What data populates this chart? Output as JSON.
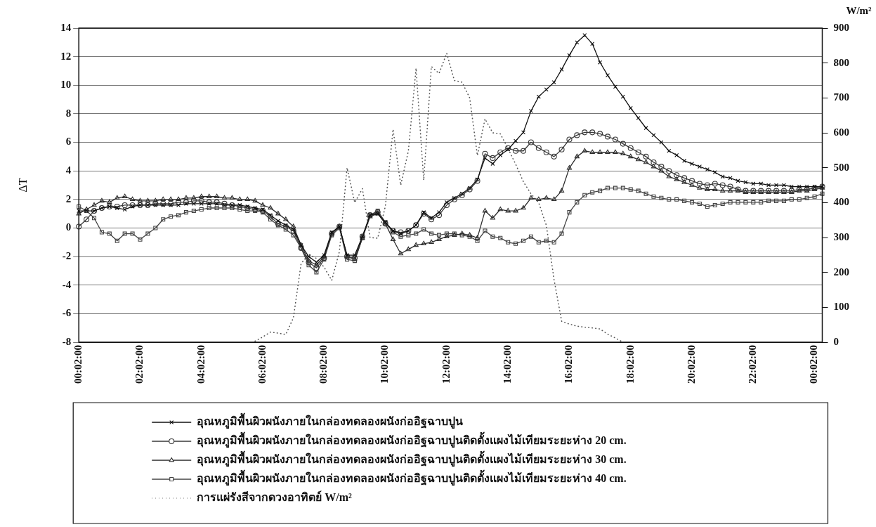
{
  "chart_data": {
    "type": "line",
    "ylabel": "ΔT",
    "y2label": "W/m²",
    "legend": "bottom",
    "grid": "y",
    "categories": [
      "00:02:00",
      null,
      null,
      null,
      null,
      null,
      null,
      null,
      "02:02:00",
      null,
      null,
      null,
      null,
      null,
      null,
      null,
      "04:02:00",
      null,
      null,
      null,
      null,
      null,
      null,
      null,
      "06:02:00",
      null,
      null,
      null,
      null,
      null,
      null,
      null,
      "08:02:00",
      null,
      null,
      null,
      null,
      null,
      null,
      null,
      "10:02:00",
      null,
      null,
      null,
      null,
      null,
      null,
      null,
      "12:02:00",
      null,
      null,
      null,
      null,
      null,
      null,
      null,
      "14:02:00",
      null,
      null,
      null,
      null,
      null,
      null,
      null,
      "16:02:00",
      null,
      null,
      null,
      null,
      null,
      null,
      null,
      "18:02:00",
      null,
      null,
      null,
      null,
      null,
      null,
      null,
      "20:02:00",
      null,
      null,
      null,
      null,
      null,
      null,
      null,
      "22:02:00",
      null,
      null,
      null,
      null,
      null,
      null,
      null,
      "00:02:00",
      null
    ],
    "ylim": [
      -8,
      14
    ],
    "yticks": [
      -8,
      -6,
      -4,
      -2,
      0,
      2,
      4,
      6,
      8,
      10,
      12,
      14
    ],
    "y2lim": [
      0,
      900
    ],
    "y2ticks": [
      0,
      100,
      200,
      300,
      400,
      500,
      600,
      700,
      800,
      900
    ],
    "series": [
      {
        "name": "อุณหภูมิพื้นผิวผนังภายในกล่องทดลองผนังก่ออิฐฉาบปูน",
        "color": "#111111",
        "marker": "cross",
        "line_style": "solid",
        "values": [
          1.2,
          1.2,
          1.2,
          1.4,
          1.5,
          1.4,
          1.3,
          1.5,
          1.6,
          1.6,
          1.6,
          1.6,
          1.6,
          1.6,
          1.7,
          1.7,
          1.7,
          1.7,
          1.7,
          1.6,
          1.6,
          1.6,
          1.5,
          1.4,
          1.3,
          0.9,
          0.5,
          0.2,
          -0.1,
          -1.2,
          -2.0,
          -2.4,
          -1.9,
          -0.3,
          0.1,
          -1.9,
          -1.9,
          -0.6,
          0.9,
          1.0,
          0.4,
          -0.2,
          -0.4,
          -0.2,
          0.2,
          1.1,
          0.7,
          1.1,
          1.8,
          2.1,
          2.4,
          2.8,
          3.4,
          4.9,
          4.5,
          5.1,
          5.5,
          6.1,
          6.7,
          8.2,
          9.2,
          9.7,
          10.2,
          11.1,
          12.1,
          13.0,
          13.5,
          12.9,
          11.6,
          10.7,
          9.9,
          9.2,
          8.4,
          7.7,
          7.0,
          6.5,
          6.0,
          5.4,
          5.1,
          4.7,
          4.5,
          4.3,
          4.1,
          3.9,
          3.6,
          3.5,
          3.3,
          3.2,
          3.1,
          3.1,
          3.0,
          3.0,
          3.0,
          2.9,
          2.9,
          2.9,
          2.9,
          2.9
        ]
      },
      {
        "name": "อุณหภูมิพื้นผิวผนังภายในกล่องทดลองผนังก่ออิฐฉาบปูนติดตั้งแผงไม้เทียมระยะห่าง 20 cm.",
        "color": "#383838",
        "marker": "circle",
        "line_style": "solid",
        "values": [
          0.1,
          0.6,
          1.2,
          1.4,
          1.5,
          1.5,
          1.6,
          1.6,
          1.6,
          1.6,
          1.7,
          1.7,
          1.7,
          1.8,
          1.8,
          1.9,
          1.9,
          1.8,
          1.8,
          1.7,
          1.6,
          1.5,
          1.4,
          1.3,
          1.2,
          0.8,
          0.3,
          0.1,
          -0.2,
          -1.4,
          -2.4,
          -2.8,
          -2.1,
          -0.4,
          0.1,
          -2.0,
          -2.1,
          -0.6,
          0.9,
          1.1,
          0.3,
          -0.2,
          -0.3,
          -0.2,
          0.2,
          1.0,
          0.6,
          0.9,
          1.6,
          2.0,
          2.3,
          2.7,
          3.3,
          5.2,
          4.9,
          5.3,
          5.6,
          5.4,
          5.4,
          6.0,
          5.6,
          5.3,
          5.0,
          5.5,
          6.2,
          6.5,
          6.7,
          6.7,
          6.6,
          6.4,
          6.2,
          5.9,
          5.6,
          5.3,
          5.0,
          4.6,
          4.3,
          4.0,
          3.7,
          3.5,
          3.3,
          3.1,
          3.0,
          3.1,
          3.0,
          2.9,
          2.7,
          2.6,
          2.6,
          2.6,
          2.6,
          2.6,
          2.6,
          2.6,
          2.7,
          2.7,
          2.8,
          2.9
        ]
      },
      {
        "name": "อุณหภูมิพื้นผิวผนังภายในกล่องทดลองผนังก่ออิฐฉาบปูนติดตั้งแผงไม้เทียมระยะห่าง 30 cm.",
        "color": "#2c2c2c",
        "marker": "triangle",
        "line_style": "solid",
        "values": [
          1.0,
          1.3,
          1.6,
          1.9,
          1.8,
          2.1,
          2.2,
          2.0,
          1.9,
          1.9,
          1.9,
          2.0,
          2.0,
          2.0,
          2.1,
          2.1,
          2.2,
          2.2,
          2.2,
          2.1,
          2.1,
          2.0,
          2.0,
          1.9,
          1.6,
          1.4,
          1.0,
          0.6,
          0.1,
          -1.2,
          -2.3,
          -2.6,
          -2.0,
          -0.4,
          0.1,
          -2.0,
          -2.2,
          -0.7,
          0.8,
          1.0,
          0.3,
          -0.8,
          -1.8,
          -1.5,
          -1.2,
          -1.1,
          -1.0,
          -0.8,
          -0.6,
          -0.5,
          -0.4,
          -0.5,
          -0.7,
          1.2,
          0.7,
          1.3,
          1.2,
          1.2,
          1.4,
          2.1,
          2.0,
          2.1,
          2.0,
          2.6,
          4.2,
          5.0,
          5.4,
          5.3,
          5.3,
          5.3,
          5.3,
          5.2,
          5.0,
          4.8,
          4.6,
          4.3,
          4.0,
          3.6,
          3.4,
          3.2,
          3.0,
          2.8,
          2.7,
          2.7,
          2.6,
          2.6,
          2.6,
          2.5,
          2.5,
          2.5,
          2.5,
          2.5,
          2.5,
          2.5,
          2.6,
          2.6,
          2.7,
          2.8
        ]
      },
      {
        "name": "อุณหภูมิพื้นผิวผนังภายในกล่องทดลองผนังก่ออิฐฉาบปูนติดตั้งแผงไม้เทียมระยะห่าง 40 cm.",
        "color": "#444444",
        "marker": "square",
        "line_style": "solid",
        "values": [
          1.5,
          1.2,
          0.7,
          -0.3,
          -0.4,
          -0.9,
          -0.4,
          -0.4,
          -0.8,
          -0.4,
          0.0,
          0.6,
          0.8,
          0.9,
          1.1,
          1.2,
          1.3,
          1.4,
          1.4,
          1.4,
          1.4,
          1.3,
          1.2,
          1.2,
          1.1,
          0.6,
          0.2,
          -0.1,
          -0.5,
          -1.4,
          -2.6,
          -3.1,
          -2.2,
          -0.5,
          0.0,
          -2.2,
          -2.3,
          -0.7,
          0.9,
          1.2,
          0.4,
          -0.3,
          -0.6,
          -0.5,
          -0.4,
          -0.1,
          -0.4,
          -0.5,
          -0.4,
          -0.4,
          -0.5,
          -0.6,
          -0.9,
          -0.2,
          -0.6,
          -0.7,
          -1.0,
          -1.1,
          -0.9,
          -0.6,
          -1.0,
          -0.9,
          -1.0,
          -0.4,
          1.1,
          1.8,
          2.3,
          2.5,
          2.6,
          2.8,
          2.8,
          2.8,
          2.7,
          2.6,
          2.4,
          2.2,
          2.1,
          2.0,
          2.0,
          1.9,
          1.8,
          1.7,
          1.5,
          1.6,
          1.7,
          1.8,
          1.8,
          1.8,
          1.8,
          1.8,
          1.9,
          1.9,
          1.9,
          2.0,
          2.0,
          2.1,
          2.2,
          2.4
        ]
      },
      {
        "name": "การแผ่รังสีจากดวงอาทิตย์ W/m²",
        "color": "#555555",
        "marker": "none",
        "line_style": "dotted",
        "axis": "y2",
        "values": [
          null,
          null,
          null,
          null,
          null,
          null,
          null,
          null,
          null,
          null,
          null,
          null,
          null,
          null,
          null,
          null,
          null,
          null,
          null,
          null,
          null,
          null,
          null,
          3,
          15,
          29,
          26,
          22,
          70,
          225,
          252,
          240,
          215,
          177,
          260,
          500,
          400,
          440,
          300,
          298,
          390,
          610,
          450,
          548,
          785,
          464,
          790,
          770,
          828,
          750,
          745,
          700,
          535,
          640,
          600,
          597,
          555,
          510,
          460,
          425,
          400,
          335,
          180,
          60,
          52,
          46,
          43,
          41,
          38,
          23,
          12,
          0,
          null,
          null,
          null,
          null,
          null,
          null,
          null,
          null,
          null,
          null,
          null,
          null,
          null,
          null,
          null,
          null,
          null,
          null,
          null,
          null,
          null,
          null,
          null,
          null,
          null,
          null
        ]
      }
    ]
  }
}
